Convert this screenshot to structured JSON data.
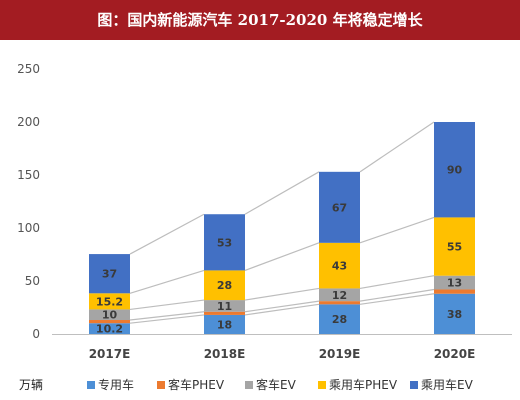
{
  "title": "图：国内新能源汽车 2017-2020 年将稳定增长",
  "chart_data": {
    "type": "bar",
    "stacked": true,
    "unit": "万辆",
    "categories": [
      "2017E",
      "2018E",
      "2019E",
      "2020E"
    ],
    "ylim": [
      0,
      250
    ],
    "yticks": [
      0,
      50,
      100,
      150,
      200,
      250
    ],
    "grid": false,
    "legend_position": "bottom",
    "connector_lines": true,
    "series": [
      {
        "name": "专用车",
        "color": "#4d8fd6",
        "values": [
          10.2,
          18,
          28,
          38
        ]
      },
      {
        "name": "客车PHEV",
        "color": "#ec7a2f",
        "values": [
          3,
          3,
          3,
          4
        ]
      },
      {
        "name": "客车EV",
        "color": "#a5a5a5",
        "values": [
          10,
          11,
          12,
          13
        ]
      },
      {
        "name": "乘用车PHEV",
        "color": "#ffc000",
        "values": [
          15.2,
          28,
          43,
          55
        ]
      },
      {
        "name": "乘用车EV",
        "color": "#4270c4",
        "values": [
          37,
          53,
          67,
          90
        ]
      }
    ],
    "data_labels": [
      [
        "10.2",
        "18",
        "28",
        "38"
      ],
      [
        "",
        "",
        "",
        ""
      ],
      [
        "10",
        "11",
        "12",
        "13"
      ],
      [
        "15.2",
        "28",
        "43",
        "55"
      ],
      [
        "37",
        "53",
        "67",
        "90"
      ]
    ]
  }
}
